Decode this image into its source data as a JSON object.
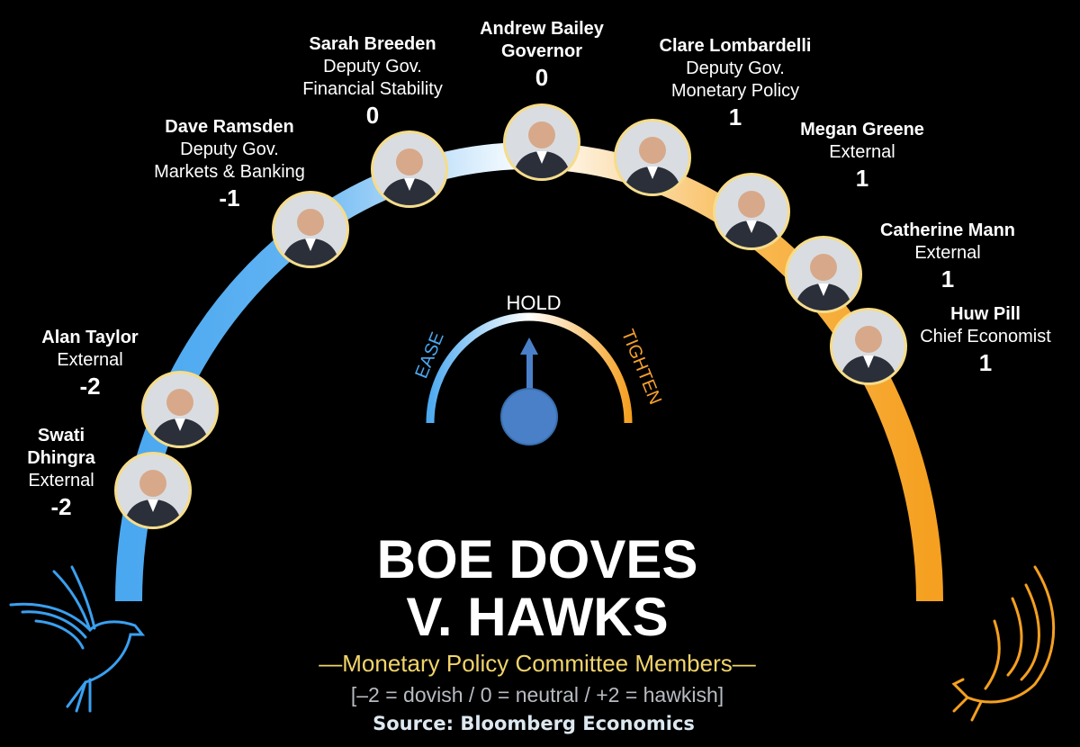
{
  "title_line1": "BOE DOVES",
  "title_line2": "V. HAWKS",
  "subtitle": "—Monetary Policy Committee Members—",
  "scale_note": "[–2 = dovish / 0 = neutral / +2 = hawkish]",
  "source": "Source:  Bloomberg  Economics",
  "gauge": {
    "left": "EASE",
    "center": "HOLD",
    "right": "TIGHTEN",
    "reading": "HOLD"
  },
  "colors": {
    "dovish": "#4aa8f0",
    "neutral": "#ffffff",
    "hawkish": "#f5a020",
    "photo_border": "#f6dc8a",
    "subtitle": "#f1d46a"
  },
  "members": [
    {
      "name": "Swati Dhingra",
      "name_lines": [
        "Swati",
        "Dhingra"
      ],
      "role": [
        "External"
      ],
      "score": "-2"
    },
    {
      "name": "Alan Taylor",
      "name_lines": [
        "Alan Taylor"
      ],
      "role": [
        "External"
      ],
      "score": "-2"
    },
    {
      "name": "Dave Ramsden",
      "name_lines": [
        "Dave Ramsden"
      ],
      "role": [
        "Deputy Gov.",
        "Markets & Banking"
      ],
      "score": "-1"
    },
    {
      "name": "Sarah Breeden",
      "name_lines": [
        "Sarah Breeden"
      ],
      "role": [
        "Deputy Gov.",
        "Financial Stability"
      ],
      "score": "0"
    },
    {
      "name": "Andrew Bailey",
      "name_lines": [
        "Andrew Bailey",
        "Governor"
      ],
      "role": [],
      "score": "0"
    },
    {
      "name": "Clare Lombardelli",
      "name_lines": [
        "Clare Lombardelli"
      ],
      "role": [
        "Deputy Gov.",
        "Monetary Policy"
      ],
      "score": "1"
    },
    {
      "name": "Megan Greene",
      "name_lines": [
        "Megan Greene"
      ],
      "role": [
        "External"
      ],
      "score": "1"
    },
    {
      "name": "Catherine Mann",
      "name_lines": [
        "Catherine Mann"
      ],
      "role": [
        "External"
      ],
      "score": "1"
    },
    {
      "name": "Huw Pill",
      "name_lines": [
        "Huw Pill"
      ],
      "role": [
        "Chief Economist"
      ],
      "score": "1"
    }
  ]
}
